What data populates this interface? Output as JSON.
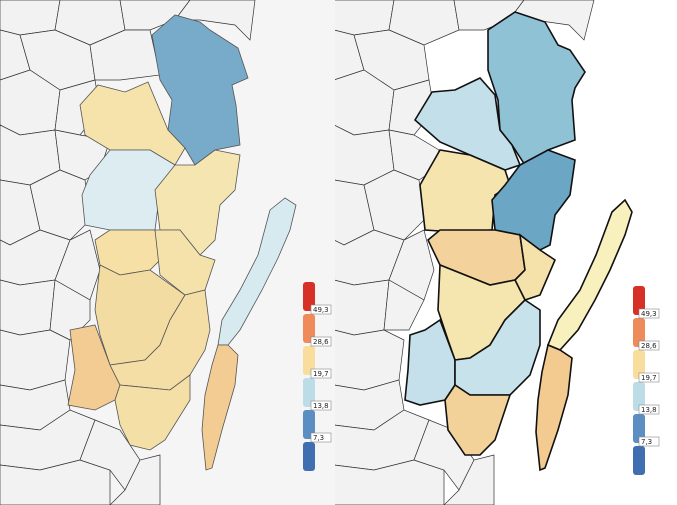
{
  "maps": [
    {
      "name": "municipality-map",
      "regions": [
        {
          "id": "north-east",
          "color": "#77abc9"
        },
        {
          "id": "north-west",
          "color": "#f6e2ab"
        },
        {
          "id": "middle-west",
          "color": "#dcecf1"
        },
        {
          "id": "middle-east",
          "color": "#f5e6b1"
        },
        {
          "id": "central-north",
          "color": "#f7e0a6"
        },
        {
          "id": "central-east",
          "color": "#f5e2ab"
        },
        {
          "id": "central",
          "color": "#f3dca1"
        },
        {
          "id": "south-west",
          "color": "#f3cc94"
        },
        {
          "id": "south-middle",
          "color": "#f4dea5"
        },
        {
          "id": "south",
          "color": "#f4dfa7"
        },
        {
          "id": "island-north",
          "color": "#d7eaf0"
        },
        {
          "id": "island-south",
          "color": "#f3cc94"
        }
      ]
    },
    {
      "name": "district-map",
      "regions": [
        {
          "id": "north-east",
          "color": "#90c2d6"
        },
        {
          "id": "north-west",
          "color": "#c3dfe9"
        },
        {
          "id": "middle-west",
          "color": "#f6e4ae"
        },
        {
          "id": "middle-east",
          "color": "#6ba7c5"
        },
        {
          "id": "central-north",
          "color": "#f3d39b"
        },
        {
          "id": "central-east",
          "color": "#f5e1aa"
        },
        {
          "id": "central",
          "color": "#f5e5af"
        },
        {
          "id": "south-west",
          "color": "#c5e0ea"
        },
        {
          "id": "south-middle",
          "color": "#c7e2ea"
        },
        {
          "id": "south",
          "color": "#f3d29a"
        },
        {
          "id": "island-north",
          "color": "#f8f0bd"
        },
        {
          "id": "island-south",
          "color": "#f3cb91"
        }
      ]
    }
  ],
  "legend": {
    "swatches": [
      "#d73027",
      "#ef8a5a",
      "#f9dd9d",
      "#bcdde8",
      "#5b8fc3",
      "#3f6fb0"
    ],
    "ticks": [
      "49,3",
      "28,6",
      "19,7",
      "13,8",
      "7,3"
    ]
  }
}
